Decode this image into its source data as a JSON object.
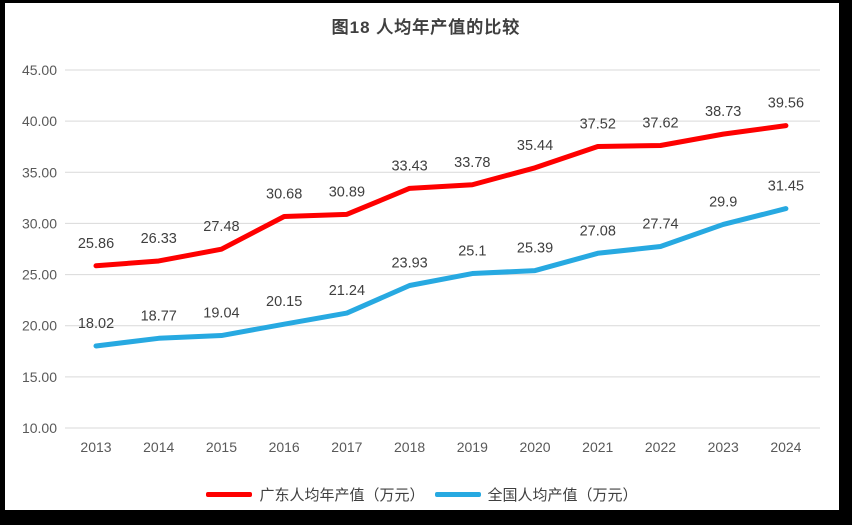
{
  "title": "图18 人均年产值的比较",
  "colors": {
    "guangdong_line": "#fe0000",
    "national_line": "#27a9e1",
    "gridline": "#d9d9d9",
    "tick_text": "#595959",
    "data_label_text": "#3f3f3f",
    "frame": "#000000",
    "background": "#ffffff"
  },
  "legend": [
    {
      "label": "广东人均年产值（万元）",
      "color": "#fe0000"
    },
    {
      "label": "全国人均产值（万元）",
      "color": "#27a9e1"
    }
  ],
  "chart_data": {
    "type": "line",
    "title": "图18 人均年产值的比较",
    "xlabel": "",
    "ylabel": "",
    "categories": [
      "2013",
      "2014",
      "2015",
      "2016",
      "2017",
      "2018",
      "2019",
      "2020",
      "2021",
      "2022",
      "2023",
      "2024"
    ],
    "series": [
      {
        "name": "广东人均年产值（万元）",
        "color": "#fe0000",
        "values": [
          25.86,
          26.33,
          27.48,
          30.68,
          30.89,
          33.43,
          33.78,
          35.44,
          37.52,
          37.62,
          38.73,
          39.56
        ],
        "labels": [
          "25.86",
          "26.33",
          "27.48",
          "30.68",
          "30.89",
          "33.43",
          "33.78",
          "35.44",
          "37.52",
          "37.62",
          "38.73",
          "39.56"
        ]
      },
      {
        "name": "全国人均产值（万元）",
        "color": "#27a9e1",
        "values": [
          18.02,
          18.77,
          19.04,
          20.15,
          21.24,
          23.93,
          25.1,
          25.39,
          27.08,
          27.74,
          29.9,
          31.45
        ],
        "labels": [
          "18.02",
          "18.77",
          "19.04",
          "20.15",
          "21.24",
          "23.93",
          "25.1",
          "25.39",
          "27.08",
          "27.74",
          "29.9",
          "31.45"
        ]
      }
    ],
    "ylim": [
      10,
      45
    ],
    "yticks": [
      45,
      40,
      35,
      30,
      25,
      20,
      15,
      10
    ],
    "ytick_format": "0.00",
    "grid": "horizontal",
    "legend_position": "bottom",
    "data_labels": "above-points"
  }
}
